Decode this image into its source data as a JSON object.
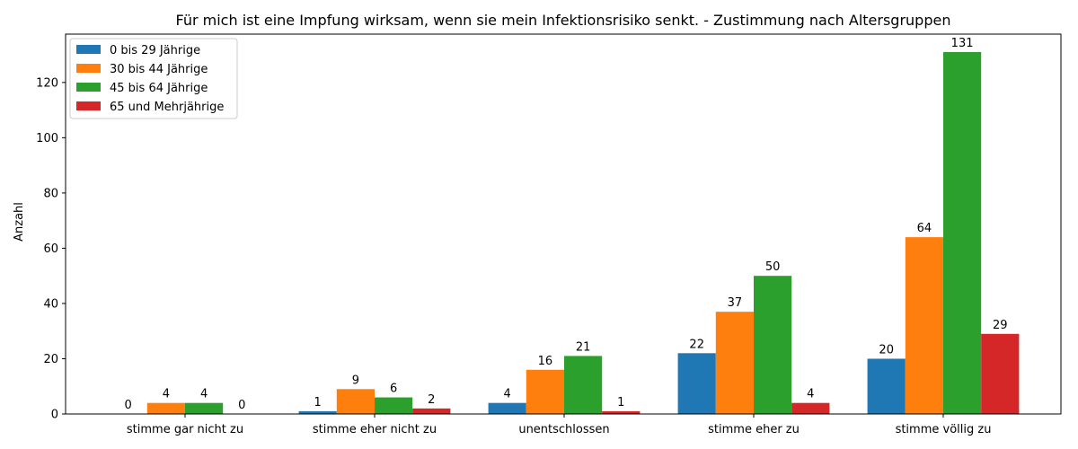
{
  "chart_data": {
    "type": "bar",
    "title": "Für mich ist eine Impfung wirksam, wenn sie mein Infektionsrisiko senkt. - Zustimmung nach Altersgruppen",
    "xlabel": "",
    "ylabel": "Anzahl",
    "categories": [
      "stimme gar nicht zu",
      "stimme eher nicht zu",
      "unentschlossen",
      "stimme eher zu",
      "stimme völlig zu"
    ],
    "series": [
      {
        "name": "0 bis 29 Jährige",
        "color": "#1f77b4",
        "values": [
          0,
          1,
          4,
          22,
          20
        ]
      },
      {
        "name": "30 bis 44 Jährige",
        "color": "#ff7f0e",
        "values": [
          4,
          9,
          16,
          37,
          64
        ]
      },
      {
        "name": "45 bis 64 Jährige",
        "color": "#2ca02c",
        "values": [
          4,
          6,
          21,
          50,
          131
        ]
      },
      {
        "name": "65 und Mehrjährige",
        "color": "#d62728",
        "values": [
          0,
          2,
          1,
          4,
          29
        ]
      }
    ],
    "ylim": [
      0,
      137.5
    ],
    "yticks": [
      0,
      20,
      40,
      60,
      80,
      100,
      120
    ],
    "grid": false,
    "legend_position": "top-left"
  }
}
